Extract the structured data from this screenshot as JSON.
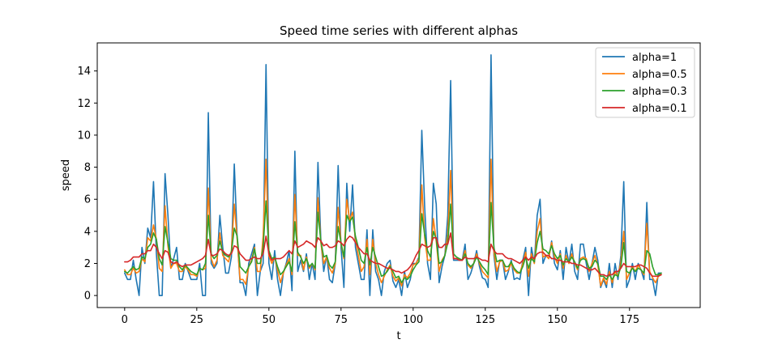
{
  "chart_data": {
    "type": "line",
    "title": "Speed time series with different alphas",
    "xlabel": "t",
    "ylabel": "speed",
    "xlim": [
      -9.5,
      199.5
    ],
    "ylim": [
      -0.75,
      15.75
    ],
    "xticks": [
      0,
      25,
      50,
      75,
      100,
      125,
      150,
      175
    ],
    "yticks": [
      0,
      2,
      4,
      6,
      8,
      10,
      12,
      14
    ],
    "legend": "top-right",
    "grid": false,
    "colors": [
      "#1f77b4",
      "#ff7f0e",
      "#2ca02c",
      "#d62728"
    ],
    "series": [
      {
        "name": "alpha=1",
        "values": [
          1.4,
          1.0,
          1.0,
          2.2,
          1.0,
          0.0,
          3.0,
          2.0,
          4.2,
          3.6,
          7.1,
          2.6,
          0.0,
          0.0,
          7.6,
          5.0,
          1.7,
          2.3,
          3.0,
          1.0,
          1.0,
          2.0,
          1.5,
          1.0,
          1.0,
          1.0,
          2.0,
          0.0,
          0.0,
          11.4,
          2.0,
          1.7,
          2.0,
          5.0,
          3.0,
          1.4,
          1.4,
          2.4,
          8.2,
          3.6,
          0.8,
          0.8,
          0.0,
          2.0,
          2.6,
          3.2,
          0.0,
          1.5,
          2.0,
          14.4,
          2.0,
          1.0,
          2.8,
          1.0,
          0.0,
          1.4,
          2.0,
          2.8,
          0.3,
          9.0,
          1.5,
          2.2,
          1.5,
          2.6,
          1.0,
          2.0,
          1.0,
          8.3,
          3.5,
          1.5,
          2.5,
          1.0,
          0.8,
          2.0,
          8.1,
          3.0,
          0.5,
          7.0,
          4.0,
          6.9,
          3.0,
          2.0,
          1.0,
          1.0,
          4.1,
          0.0,
          4.1,
          1.5,
          1.0,
          0.0,
          1.5,
          2.0,
          2.2,
          0.9,
          0.5,
          1.0,
          0.0,
          1.5,
          0.5,
          1.0,
          2.0,
          2.0,
          2.4,
          10.3,
          5.5,
          2.0,
          1.0,
          7.0,
          5.7,
          0.8,
          1.8,
          2.5,
          5.0,
          13.4,
          2.2,
          2.2,
          2.2,
          2.2,
          3.2,
          1.0,
          1.4,
          2.0,
          2.8,
          1.8,
          1.1,
          1.0,
          0.5,
          15.0,
          2.5,
          1.0,
          2.2,
          2.2,
          1.0,
          1.5,
          2.2,
          1.0,
          1.1,
          1.0,
          2.2,
          3.0,
          0.0,
          3.0,
          2.0,
          5.0,
          6.0,
          2.0,
          2.5,
          2.3,
          3.4,
          2.0,
          1.6,
          2.8,
          1.0,
          3.0,
          2.0,
          3.2,
          1.5,
          1.0,
          3.2,
          3.2,
          2.0,
          1.0,
          2.0,
          3.0,
          2.2,
          0.5,
          1.0,
          0.5,
          2.0,
          0.5,
          2.0,
          1.0,
          2.5,
          7.1,
          0.5,
          1.0,
          2.0,
          1.0,
          2.0,
          1.6,
          1.0,
          5.8,
          1.0,
          1.0,
          0.0,
          1.4,
          1.4
        ]
      },
      {
        "name": "alpha=0.5",
        "values": [
          1.6,
          1.3,
          1.3,
          1.7,
          1.4,
          1.5,
          2.3,
          2.1,
          3.6,
          3.4,
          4.4,
          3.5,
          1.7,
          1.5,
          5.6,
          3.1,
          1.7,
          2.0,
          2.0,
          1.5,
          1.5,
          1.8,
          1.6,
          1.3,
          1.3,
          1.2,
          1.7,
          1.6,
          1.7,
          6.7,
          2.3,
          1.8,
          2.2,
          3.9,
          2.5,
          2.3,
          2.1,
          2.8,
          5.7,
          3.5,
          1.0,
          1.0,
          0.7,
          1.8,
          2.2,
          3.0,
          1.5,
          1.5,
          3.7,
          8.5,
          2.5,
          2.0,
          2.4,
          1.6,
          0.8,
          1.4,
          1.9,
          2.3,
          1.3,
          6.3,
          2.5,
          2.5,
          1.6,
          2.4,
          1.7,
          2.0,
          1.6,
          6.1,
          3.3,
          2.0,
          2.4,
          1.7,
          1.4,
          2.0,
          5.5,
          3.2,
          2.3,
          6.0,
          4.7,
          5.2,
          3.5,
          2.5,
          1.5,
          1.8,
          3.5,
          1.3,
          3.5,
          2.0,
          1.3,
          0.8,
          1.2,
          1.6,
          1.9,
          1.2,
          0.9,
          1.1,
          0.6,
          1.3,
          1.1,
          1.4,
          1.9,
          2.0,
          2.3,
          6.9,
          3.6,
          2.2,
          2.2,
          4.8,
          3.4,
          1.5,
          2.2,
          2.5,
          3.8,
          7.8,
          2.3,
          2.3,
          2.3,
          2.2,
          2.8,
          1.9,
          1.7,
          2.0,
          2.6,
          2.0,
          1.5,
          1.3,
          1.1,
          8.5,
          2.7,
          1.5,
          2.1,
          2.2,
          1.5,
          1.6,
          2.0,
          1.6,
          1.4,
          1.4,
          2.0,
          2.7,
          1.2,
          2.6,
          2.0,
          4.0,
          4.8,
          2.4,
          2.5,
          2.3,
          3.3,
          2.4,
          2.0,
          2.6,
          1.7,
          2.5,
          2.0,
          2.6,
          2.0,
          1.6,
          2.3,
          2.4,
          2.3,
          1.5,
          2.0,
          2.5,
          1.9,
          0.6,
          1.1,
          0.7,
          1.5,
          0.8,
          1.5,
          1.2,
          2.1,
          4.0,
          1.0,
          1.4,
          1.8,
          1.5,
          1.9,
          1.6,
          1.3,
          4.5,
          1.5,
          1.1,
          0.8,
          1.2,
          1.3
        ]
      },
      {
        "name": "alpha=0.3",
        "values": [
          1.5,
          1.4,
          1.6,
          1.8,
          1.6,
          1.7,
          2.4,
          2.3,
          3.0,
          3.2,
          3.9,
          3.5,
          2.3,
          1.9,
          4.3,
          3.3,
          2.3,
          2.2,
          2.2,
          1.8,
          1.6,
          1.9,
          1.7,
          1.5,
          1.4,
          1.3,
          1.7,
          1.6,
          2.0,
          5.0,
          2.6,
          2.3,
          2.5,
          3.4,
          2.7,
          2.5,
          2.4,
          2.7,
          4.2,
          3.7,
          1.8,
          1.6,
          1.4,
          1.8,
          2.1,
          2.9,
          2.0,
          2.0,
          3.0,
          5.9,
          2.8,
          2.3,
          2.4,
          1.8,
          1.3,
          1.5,
          1.8,
          2.1,
          1.5,
          4.6,
          2.7,
          2.4,
          2.0,
          2.3,
          1.8,
          2.0,
          1.7,
          5.2,
          3.4,
          2.4,
          2.5,
          1.9,
          1.7,
          2.1,
          4.3,
          3.3,
          2.4,
          5.0,
          4.6,
          4.9,
          3.7,
          3.0,
          2.2,
          2.0,
          3.0,
          1.9,
          3.0,
          2.4,
          1.8,
          1.2,
          1.3,
          1.5,
          1.8,
          1.5,
          1.1,
          1.2,
          0.8,
          1.1,
          1.0,
          1.2,
          1.6,
          1.9,
          2.1,
          5.1,
          3.8,
          2.8,
          2.4,
          4.0,
          3.5,
          2.0,
          2.1,
          2.5,
          3.3,
          5.7,
          2.6,
          2.4,
          2.3,
          2.2,
          2.6,
          2.0,
          1.8,
          2.0,
          2.4,
          2.1,
          1.8,
          1.6,
          1.3,
          5.8,
          3.0,
          2.1,
          2.2,
          2.2,
          1.8,
          1.8,
          2.1,
          1.7,
          1.5,
          1.4,
          1.8,
          2.4,
          1.7,
          2.3,
          2.1,
          3.3,
          4.0,
          2.9,
          2.8,
          2.6,
          3.1,
          2.6,
          2.3,
          2.5,
          1.9,
          2.3,
          2.1,
          2.4,
          2.1,
          1.7,
          2.2,
          2.3,
          2.2,
          1.7,
          1.8,
          2.2,
          2.0,
          1.2,
          1.2,
          1.0,
          1.3,
          1.0,
          1.3,
          1.2,
          1.8,
          3.3,
          1.5,
          1.4,
          1.7,
          1.5,
          1.7,
          1.6,
          1.4,
          2.8,
          2.6,
          1.8,
          1.3,
          1.3,
          1.4
        ]
      },
      {
        "name": "alpha=0.1",
        "values": [
          2.1,
          2.1,
          2.2,
          2.4,
          2.4,
          2.4,
          2.6,
          2.6,
          2.8,
          2.8,
          3.2,
          3.0,
          2.6,
          2.3,
          2.8,
          2.7,
          2.1,
          2.0,
          2.1,
          1.9,
          1.8,
          1.9,
          1.9,
          1.9,
          2.0,
          2.1,
          2.2,
          2.3,
          2.5,
          3.5,
          2.5,
          2.5,
          2.6,
          2.9,
          2.8,
          2.6,
          2.5,
          2.6,
          3.1,
          3.0,
          2.6,
          2.4,
          2.2,
          2.2,
          2.3,
          2.4,
          2.3,
          2.3,
          2.6,
          3.7,
          2.6,
          2.2,
          2.3,
          2.3,
          2.3,
          2.4,
          2.6,
          2.8,
          2.6,
          3.4,
          3.0,
          3.1,
          3.2,
          3.4,
          3.3,
          3.2,
          3.0,
          3.6,
          3.4,
          3.1,
          3.2,
          3.0,
          3.0,
          3.1,
          3.4,
          3.3,
          3.1,
          3.5,
          3.7,
          3.6,
          3.3,
          3.0,
          2.8,
          2.6,
          2.6,
          2.2,
          2.1,
          2.0,
          2.0,
          1.9,
          1.8,
          1.7,
          1.7,
          1.6,
          1.5,
          1.5,
          1.4,
          1.5,
          1.6,
          1.8,
          2.1,
          2.5,
          2.8,
          3.2,
          3.1,
          3.0,
          3.1,
          3.6,
          3.6,
          3.0,
          3.0,
          3.2,
          3.2,
          3.9,
          2.3,
          2.3,
          2.2,
          2.2,
          2.4,
          2.3,
          2.3,
          2.3,
          2.4,
          2.3,
          2.2,
          2.2,
          2.1,
          3.2,
          2.8,
          2.6,
          2.6,
          2.6,
          2.4,
          2.3,
          2.3,
          2.2,
          2.1,
          2.0,
          2.2,
          2.4,
          2.2,
          2.4,
          2.3,
          2.6,
          2.7,
          2.7,
          2.5,
          2.5,
          2.3,
          2.3,
          2.2,
          2.2,
          2.1,
          2.1,
          2.1,
          2.0,
          2.0,
          1.9,
          1.9,
          1.8,
          1.7,
          1.6,
          1.6,
          1.7,
          1.5,
          1.3,
          1.3,
          1.2,
          1.3,
          1.3,
          1.5,
          1.5,
          1.7,
          2.0,
          1.8,
          1.8,
          1.8,
          1.8,
          1.9,
          1.9,
          1.8,
          1.7,
          1.4,
          1.2,
          1.2,
          1.2,
          1.3
        ]
      }
    ]
  }
}
